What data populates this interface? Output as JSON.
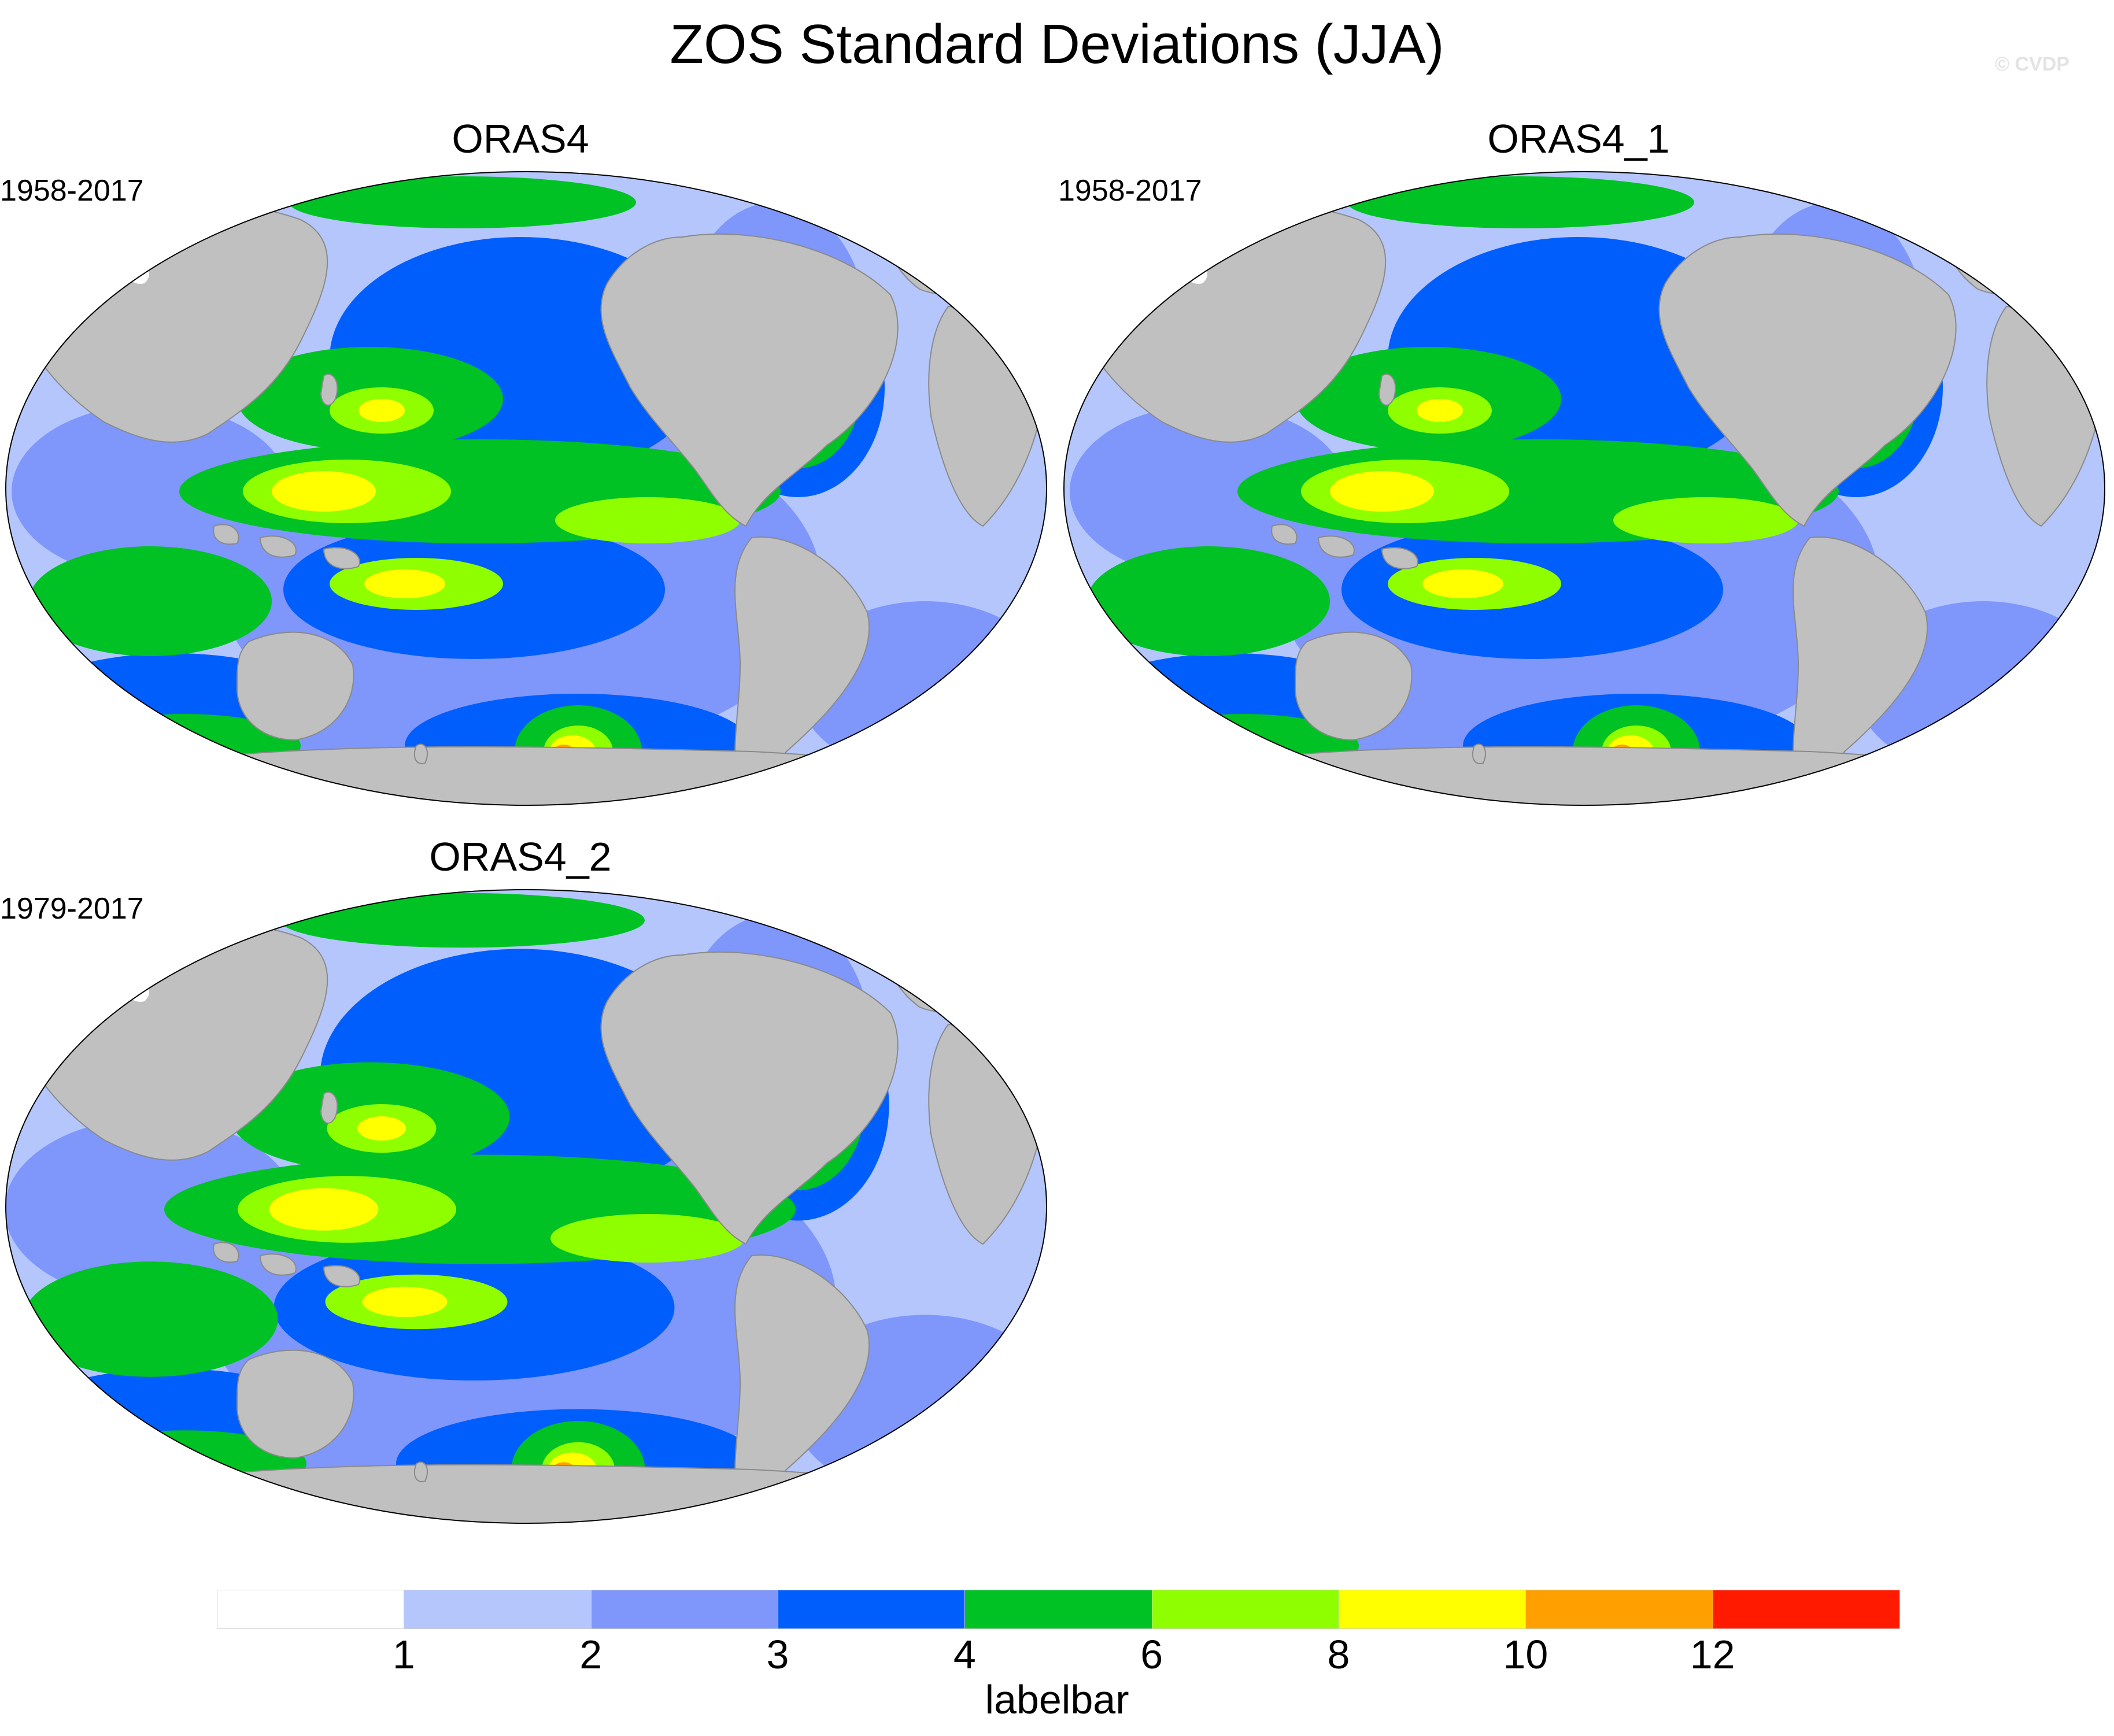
{
  "title": "ZOS Standard Deviations (JJA)",
  "watermark": "© CVDP",
  "panels": [
    {
      "name": "ORAS4",
      "years": "1958-2017"
    },
    {
      "name": "ORAS4_1",
      "years": "1958-2017"
    },
    {
      "name": "ORAS4_2",
      "years": "1979-2017"
    }
  ],
  "colorbar": {
    "label": "labelbar",
    "ticks": [
      "1",
      "2",
      "3",
      "4",
      "6",
      "8",
      "10",
      "12"
    ],
    "levels": [
      1,
      2,
      3,
      4,
      6,
      8,
      10,
      12
    ],
    "colors": [
      "#ffffff",
      "#b4c6fc",
      "#7f96fb",
      "#005efc",
      "#00c224",
      "#8fff00",
      "#ffff00",
      "#ff9f00",
      "#ff1a00"
    ]
  },
  "colors": {
    "land": "#c0c0c0",
    "ice": "#ffffff"
  }
}
